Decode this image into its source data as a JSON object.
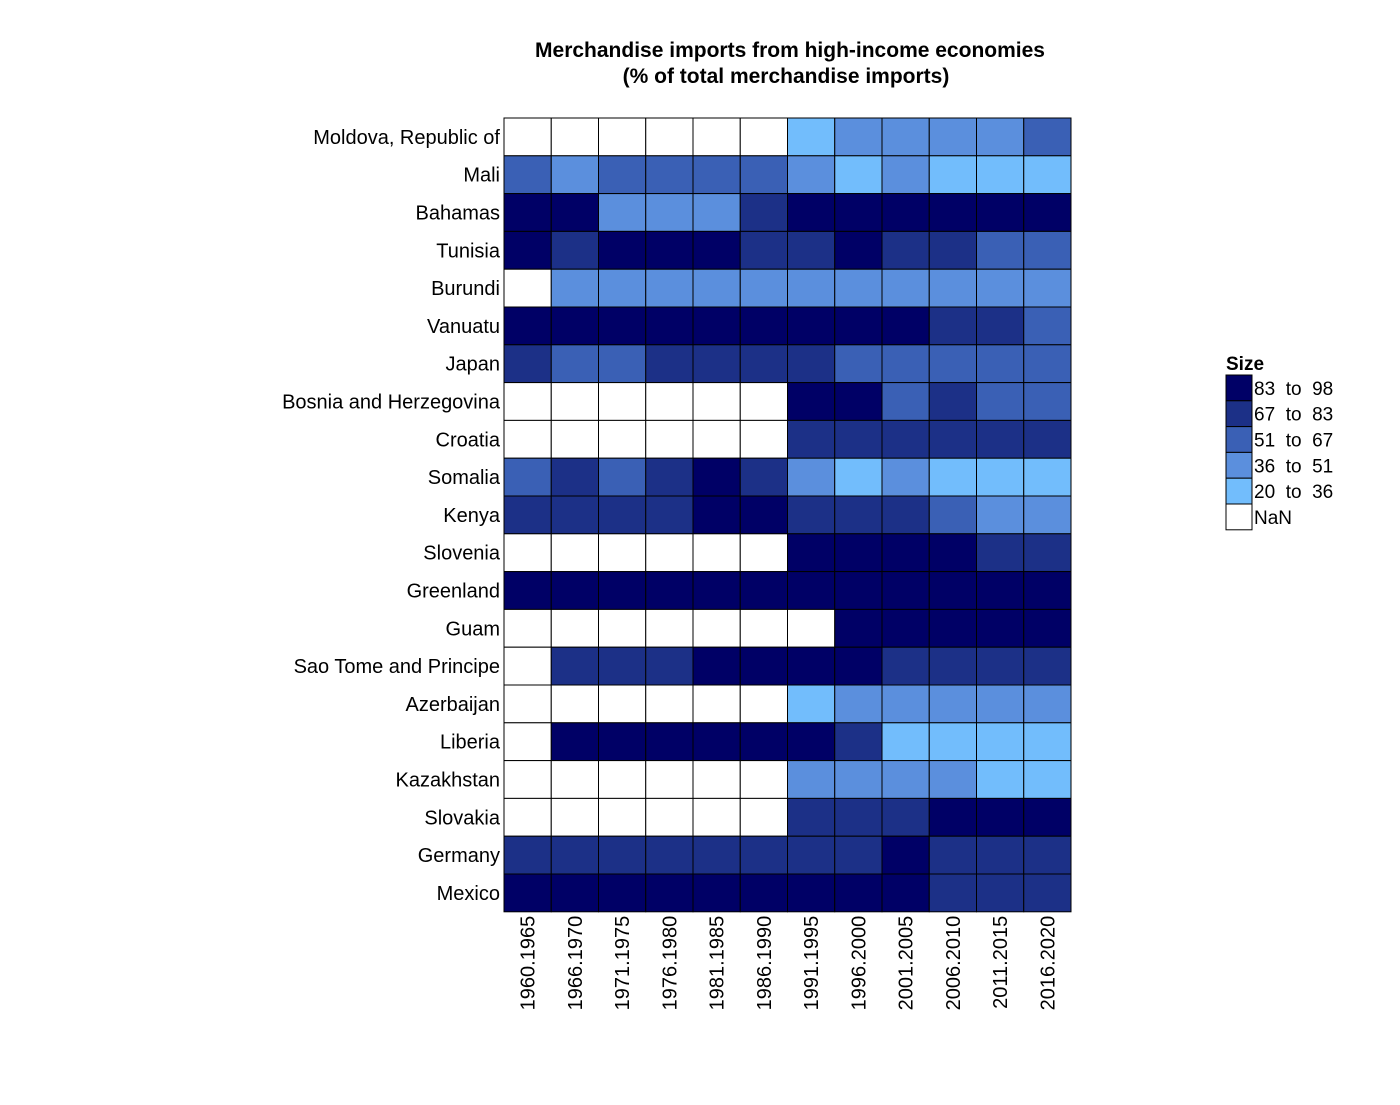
{
  "chart_data": {
    "type": "heatmap",
    "title_line1": "Merchandise imports from high-income economies",
    "title_line2": "(% of total merchandise imports)",
    "x_categories": [
      "1960.1965",
      "1966.1970",
      "1971.1975",
      "1976.1980",
      "1981.1985",
      "1986.1990",
      "1991.1995",
      "1996.2000",
      "2001.2005",
      "2006.2010",
      "2011.2015",
      "2016.2020"
    ],
    "y_categories": [
      "Moldova, Republic of",
      "Mali",
      "Bahamas",
      "Tunisia",
      "Burundi",
      "Vanuatu",
      "Japan",
      "Bosnia and Herzegovina",
      "Croatia",
      "Somalia",
      "Kenya",
      "Slovenia",
      "Greenland",
      "Guam",
      "Sao Tome and Principe",
      "Azerbaijan",
      "Liberia",
      "Kazakhstan",
      "Slovakia",
      "Germany",
      "Mexico"
    ],
    "values": [
      [
        null,
        null,
        null,
        null,
        null,
        null,
        30,
        44,
        44,
        44,
        44,
        58
      ],
      [
        58,
        44,
        58,
        58,
        58,
        58,
        44,
        30,
        44,
        30,
        30,
        30
      ],
      [
        90,
        90,
        44,
        44,
        44,
        75,
        90,
        90,
        90,
        90,
        90,
        90
      ],
      [
        90,
        75,
        90,
        90,
        90,
        75,
        75,
        90,
        75,
        75,
        58,
        58
      ],
      [
        null,
        44,
        44,
        44,
        44,
        44,
        44,
        44,
        44,
        44,
        44,
        44
      ],
      [
        90,
        90,
        90,
        90,
        90,
        90,
        90,
        90,
        90,
        75,
        75,
        58
      ],
      [
        75,
        58,
        58,
        75,
        75,
        75,
        75,
        58,
        58,
        58,
        58,
        58
      ],
      [
        null,
        null,
        null,
        null,
        null,
        null,
        90,
        90,
        58,
        75,
        58,
        58
      ],
      [
        null,
        null,
        null,
        null,
        null,
        null,
        75,
        75,
        75,
        75,
        75,
        75
      ],
      [
        58,
        75,
        58,
        75,
        90,
        75,
        44,
        30,
        44,
        30,
        30,
        30
      ],
      [
        75,
        75,
        75,
        75,
        90,
        90,
        75,
        75,
        75,
        58,
        44,
        44
      ],
      [
        null,
        null,
        null,
        null,
        null,
        null,
        90,
        90,
        90,
        90,
        75,
        75
      ],
      [
        90,
        90,
        90,
        90,
        90,
        90,
        90,
        90,
        90,
        90,
        90,
        90
      ],
      [
        null,
        null,
        null,
        null,
        null,
        null,
        null,
        90,
        90,
        90,
        90,
        90
      ],
      [
        null,
        75,
        75,
        75,
        90,
        90,
        90,
        90,
        75,
        75,
        75,
        75
      ],
      [
        null,
        null,
        null,
        null,
        null,
        null,
        30,
        44,
        44,
        44,
        44,
        44
      ],
      [
        null,
        90,
        90,
        90,
        90,
        90,
        90,
        75,
        30,
        30,
        30,
        30
      ],
      [
        null,
        null,
        null,
        null,
        null,
        null,
        44,
        44,
        44,
        44,
        30,
        30
      ],
      [
        null,
        null,
        null,
        null,
        null,
        null,
        75,
        75,
        75,
        90,
        90,
        90
      ],
      [
        75,
        75,
        75,
        75,
        75,
        75,
        75,
        75,
        90,
        75,
        75,
        75
      ],
      [
        90,
        90,
        90,
        90,
        90,
        90,
        90,
        90,
        90,
        75,
        75,
        75
      ]
    ],
    "legend": {
      "title": "Size",
      "bins": [
        {
          "label": "83  to  98",
          "min": 83,
          "max": 98,
          "color": "#000066"
        },
        {
          "label": "67  to  83",
          "min": 67,
          "max": 83,
          "color": "#1c3087"
        },
        {
          "label": "51  to  67",
          "min": 51,
          "max": 67,
          "color": "#3a60b5"
        },
        {
          "label": "36  to  51",
          "min": 36,
          "max": 51,
          "color": "#5b8fdd"
        },
        {
          "label": "20  to  36",
          "min": 20,
          "max": 36,
          "color": "#72bdfc"
        },
        {
          "label": "NaN",
          "min": null,
          "max": null,
          "color": "#ffffff"
        }
      ]
    }
  }
}
